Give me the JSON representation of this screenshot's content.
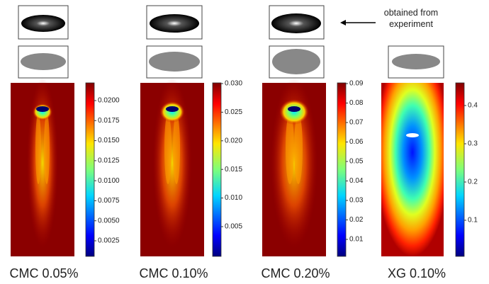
{
  "annotation": [
    "obtained from",
    "experiment"
  ],
  "panels": [
    {
      "label": "CMC 0.05%",
      "colorbar_ticks": [
        "0.0025",
        "0.0050",
        "0.0075",
        "0.0100",
        "0.0125",
        "0.0150",
        "0.0175",
        "0.0200"
      ]
    },
    {
      "label": "CMC 0.10%",
      "colorbar_ticks": [
        "0.005",
        "0.010",
        "0.015",
        "0.020",
        "0.025",
        "0.030"
      ]
    },
    {
      "label": "CMC 0.20%",
      "colorbar_ticks": [
        "0.01",
        "0.02",
        "0.03",
        "0.04",
        "0.05",
        "0.06",
        "0.07",
        "0.08",
        "0.09"
      ]
    },
    {
      "label": "XG 0.10%",
      "colorbar_ticks": [
        "0.1",
        "0.2",
        "0.3",
        "0.4"
      ]
    }
  ]
}
